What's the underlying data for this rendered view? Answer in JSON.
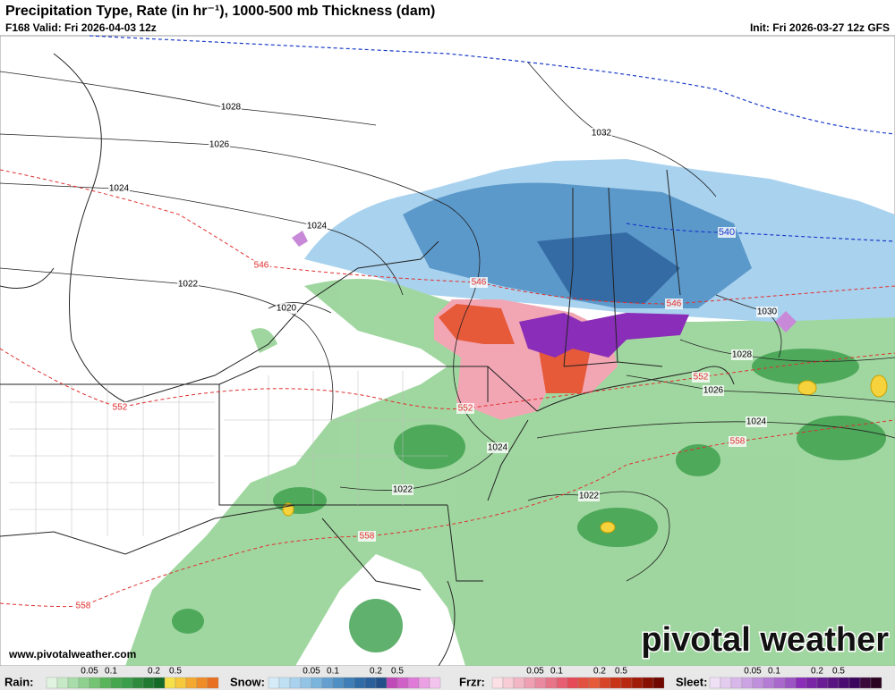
{
  "header": {
    "title": "Precipitation Type, Rate (in hr⁻¹), 1000-500 mb Thickness (dam)",
    "valid": "F168 Valid: Fri 2026-04-03 12z",
    "init": "Init: Fri 2026-03-27 12z GFS"
  },
  "pressure_labels": [
    "1028",
    "1026",
    "1024",
    "1024",
    "1022",
    "1020",
    "1032",
    "1030",
    "1028",
    "1026",
    "1024",
    "1024",
    "1022",
    "1022"
  ],
  "thickness_labels": [
    "546",
    "546",
    "546",
    "552",
    "552",
    "552",
    "558",
    "558",
    "558",
    "540"
  ],
  "website": "www.pivotalweather.com",
  "logo": "pivotal weather",
  "legend": [
    {
      "name": "Rain:",
      "ticks": [
        "0.05",
        "0.1",
        "0.2",
        "0.5"
      ]
    },
    {
      "name": "Snow:",
      "ticks": [
        "0.05",
        "0.1",
        "0.2",
        "0.5"
      ]
    },
    {
      "name": "Frzr:",
      "ticks": [
        "0.05",
        "0.1",
        "0.2",
        "0.5"
      ]
    },
    {
      "name": "Sleet:",
      "ticks": [
        "0.05",
        "0.1",
        "0.2",
        "0.5"
      ]
    }
  ]
}
